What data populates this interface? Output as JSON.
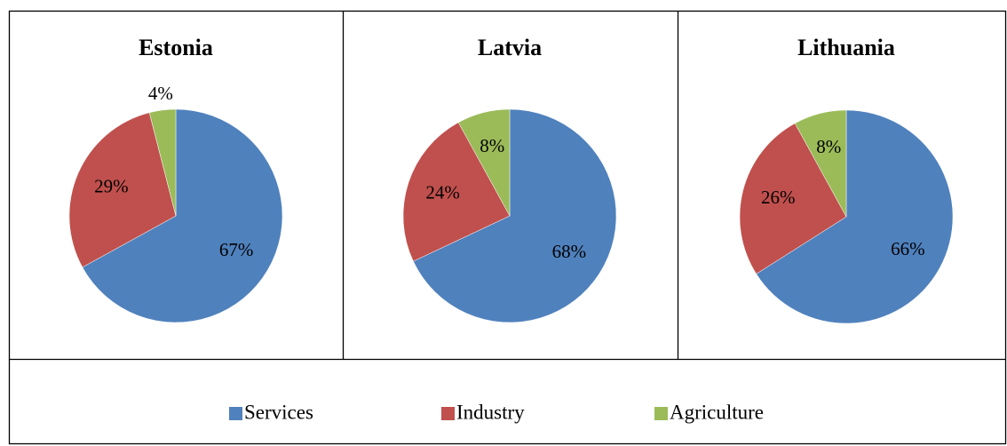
{
  "chart_data": [
    {
      "type": "pie",
      "title": "Estonia",
      "categories": [
        "Services",
        "Industry",
        "Agriculture"
      ],
      "values": [
        67,
        29,
        4
      ],
      "value_labels": [
        "67%",
        "29%",
        "4%"
      ],
      "colors": [
        "#4f81bd",
        "#c0504d",
        "#9bbb59"
      ]
    },
    {
      "type": "pie",
      "title": "Latvia",
      "categories": [
        "Services",
        "Industry",
        "Agriculture"
      ],
      "values": [
        68,
        24,
        8
      ],
      "value_labels": [
        "68%",
        "24%",
        "8%"
      ],
      "colors": [
        "#4f81bd",
        "#c0504d",
        "#9bbb59"
      ]
    },
    {
      "type": "pie",
      "title": "Lithuania",
      "categories": [
        "Services",
        "Industry",
        "Agriculture"
      ],
      "values": [
        66,
        26,
        8
      ],
      "value_labels": [
        "66%",
        "26%",
        "8%"
      ],
      "colors": [
        "#4f81bd",
        "#c0504d",
        "#9bbb59"
      ]
    }
  ]
}
